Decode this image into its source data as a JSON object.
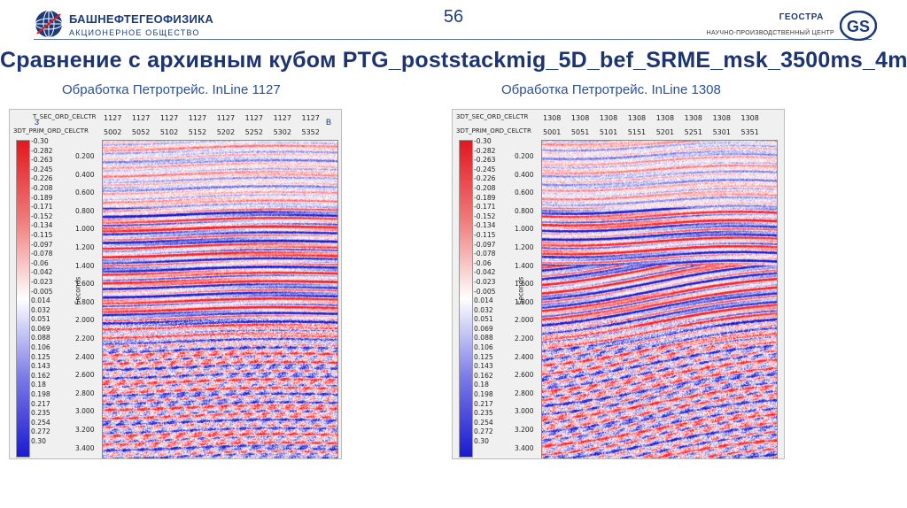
{
  "header": {
    "brand_name": "БАШНЕФТЕГЕОФИЗИКА",
    "brand_sub": "АКЦИОНЕРНОЕ ОБЩЕСТВО",
    "page_number": "56",
    "geostra_name": "ГЕОСТРА",
    "geostra_sub": "НАУЧНО-ПРОИЗВОДСТВЕННЫЙ ЦЕНТР",
    "gs_badge": "GS"
  },
  "title": "Сравнение с архивным кубом PTG_poststackmig_5D_bef_SRME_msk_3500ms_4ms",
  "colors": {
    "brand": "#1c3572",
    "caption": "#2a4f9a",
    "positive": "#e3171e",
    "negative": "#1a1ad0"
  },
  "panels": [
    {
      "caption": "Обработка Петротрейс. InLine 1127",
      "header_row1": "T_SEC_ORD_CELCTR",
      "header_row2": "3DT_PRIM_ORD_CELCTR",
      "row1_ticks": [
        "1127",
        "1127",
        "1127",
        "1127",
        "1127",
        "1127",
        "1127",
        "1127"
      ],
      "row2_ticks": [
        "5002",
        "5052",
        "5102",
        "5152",
        "5202",
        "5252",
        "5302",
        "5352"
      ],
      "corner_left": "3",
      "corner_right": "B",
      "ylabel": "Seconds",
      "y_ticks": [
        "0.200",
        "0.400",
        "0.600",
        "0.800",
        "1.000",
        "1.200",
        "1.400",
        "1.600",
        "1.800",
        "2.000",
        "2.200",
        "2.400",
        "2.600",
        "2.800",
        "3.000",
        "3.200",
        "3.400"
      ]
    },
    {
      "caption": "Обработка Петротрейс. InLine 1308",
      "header_row1": "3DT_SEC_ORD_CELCTR",
      "header_row2": "3DT_PRIM_ORD_CELCTR",
      "row1_ticks": [
        "1308",
        "1308",
        "1308",
        "1308",
        "1308",
        "1308",
        "1308",
        "1308"
      ],
      "row2_ticks": [
        "5001",
        "5051",
        "5101",
        "5151",
        "5201",
        "5251",
        "5301",
        "5351"
      ],
      "corner_left": "",
      "corner_right": "",
      "ylabel": "Seconds",
      "y_ticks": [
        "0.200",
        "0.400",
        "0.600",
        "0.800",
        "1.000",
        "1.200",
        "1.400",
        "1.600",
        "1.800",
        "2.000",
        "2.200",
        "2.400",
        "2.600",
        "2.800",
        "3.000",
        "3.200",
        "3.400"
      ]
    }
  ],
  "colorbar_labels": [
    "-0.30",
    "-0.282",
    "-0.263",
    "-0.245",
    "-0.226",
    "-0.208",
    "-0.189",
    "-0.171",
    "-0.152",
    "-0.134",
    "-0.115",
    "-0.097",
    "-0.078",
    "-0.06",
    "-0.042",
    "-0.023",
    "-0.005",
    "0.014",
    "0.032",
    "0.051",
    "0.069",
    "0.088",
    "0.106",
    "0.125",
    "0.143",
    "0.162",
    "0.18",
    "0.198",
    "0.217",
    "0.235",
    "0.254",
    "0.272",
    "0.30"
  ]
}
